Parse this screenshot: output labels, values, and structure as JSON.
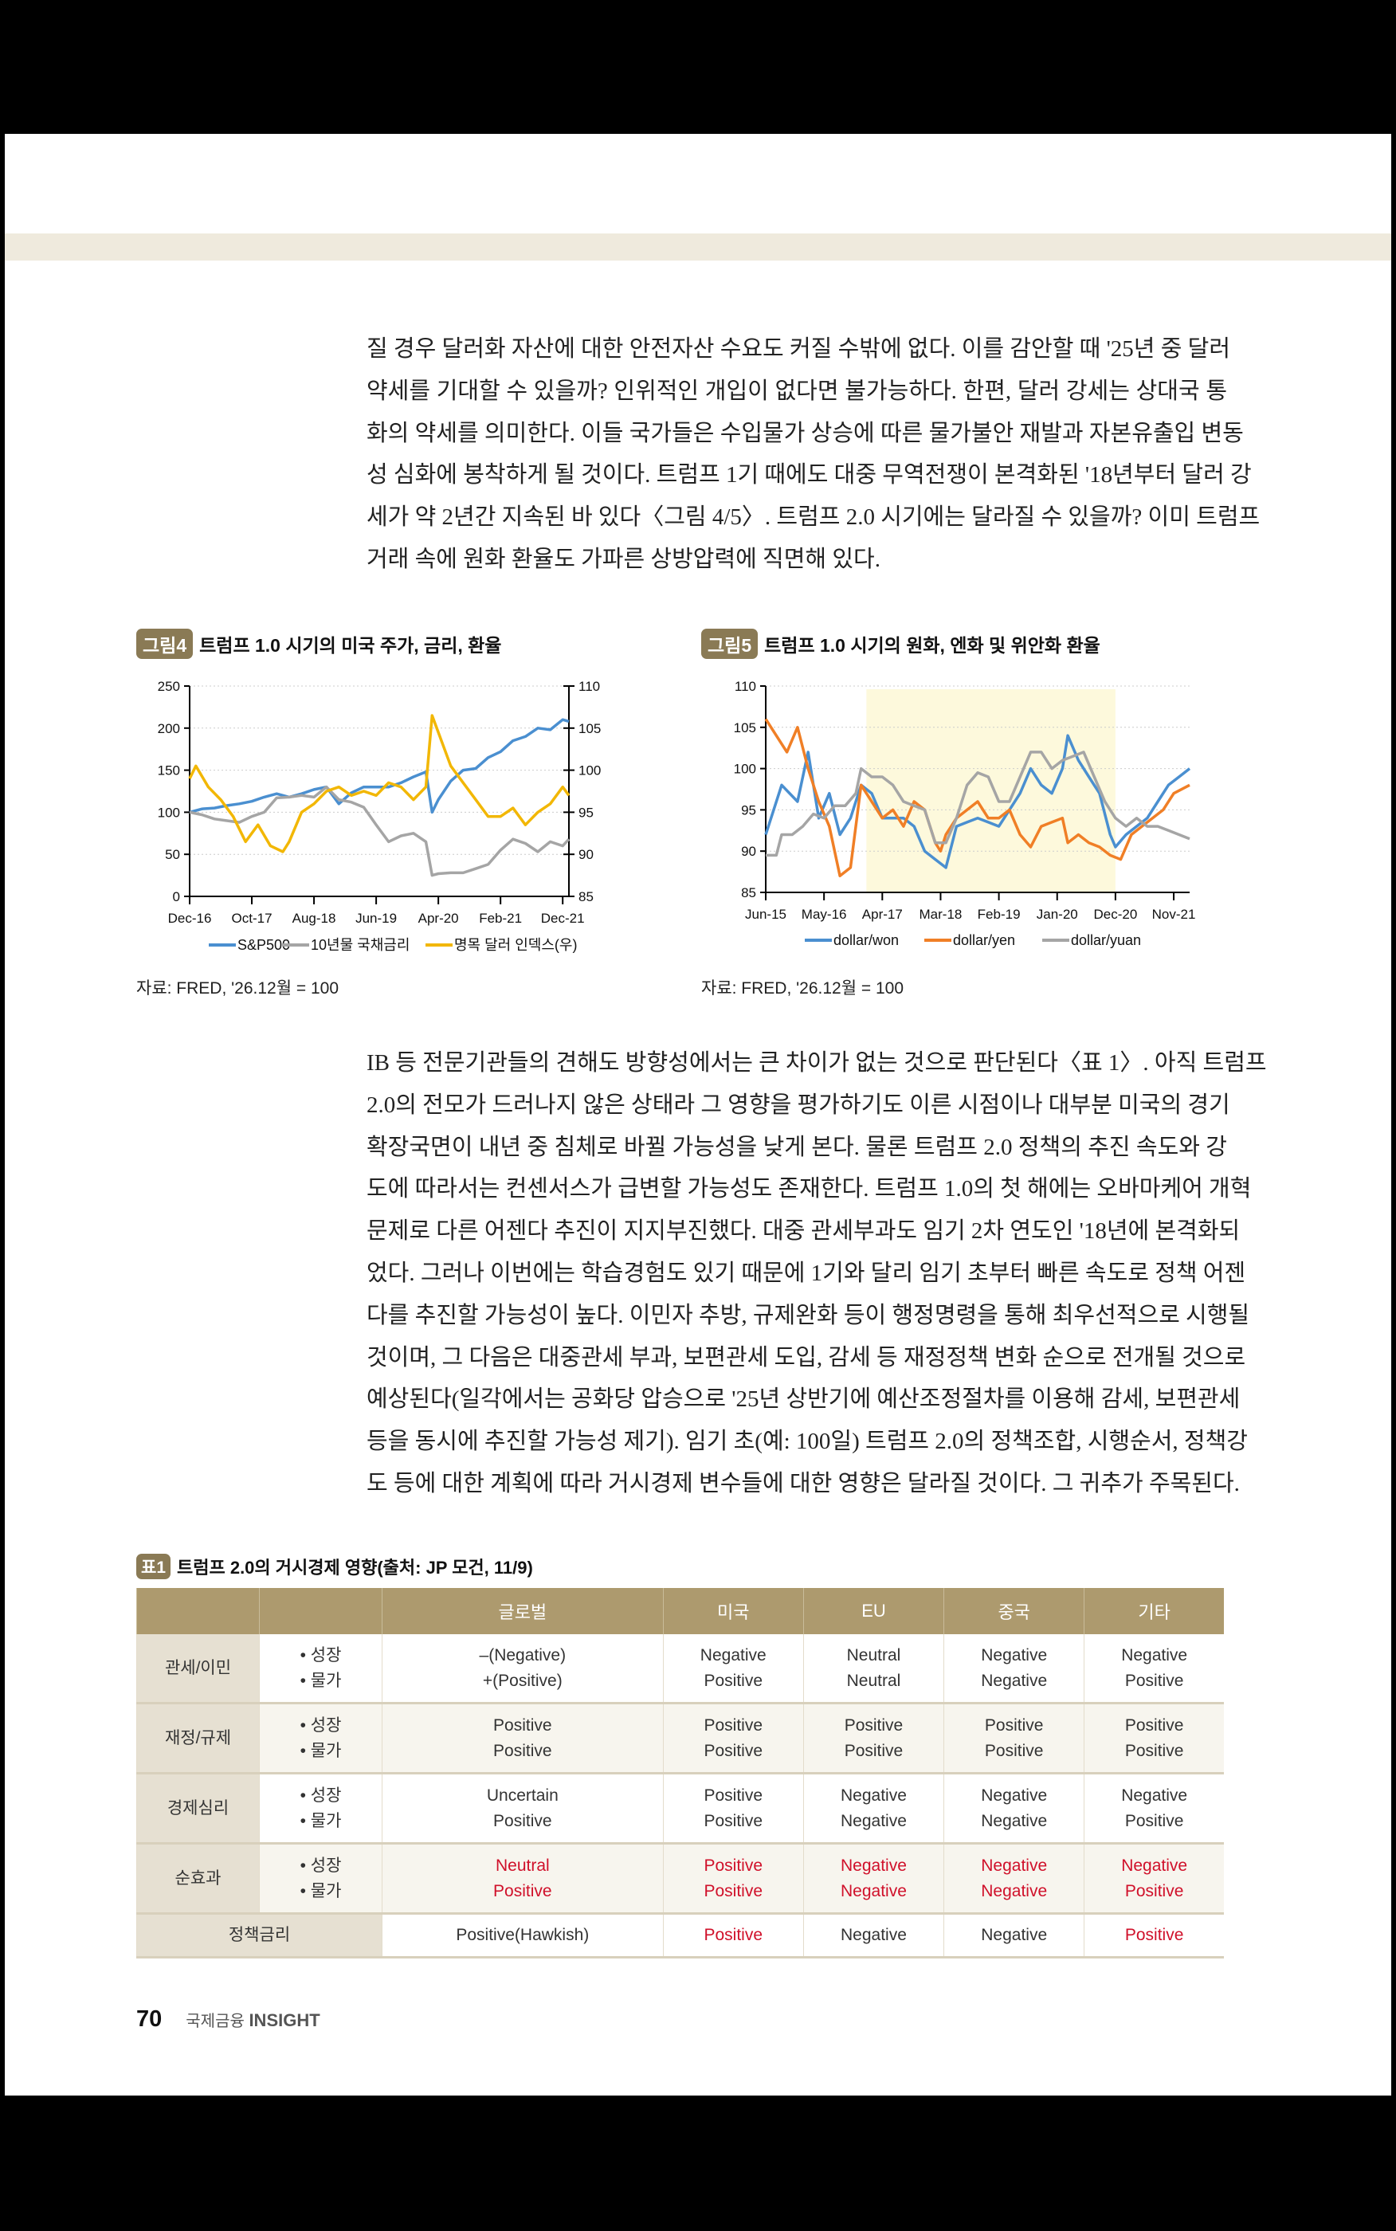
{
  "paragraph1": [
    "질 경우 달러화 자산에 대한 안전자산 수요도 커질 수밖에 없다. 이를 감안할 때 '25년 중 달러",
    "약세를 기대할 수 있을까? 인위적인 개입이 없다면 불가능하다. 한편, 달러 강세는 상대국 통",
    "화의 약세를 의미한다. 이들 국가들은 수입물가 상승에 따른 물가불안 재발과 자본유출입 변동",
    "성 심화에 봉착하게 될 것이다. 트럼프 1기 때에도 대중 무역전쟁이 본격화된 '18년부터 달러 강",
    "세가 약 2년간 지속된 바 있다〈그림 4/5〉. 트럼프 2.0 시기에는 달라질 수 있을까? 이미 트럼프",
    "거래 속에 원화 환율도 가파른 상방압력에 직면해 있다."
  ],
  "paragraph2": [
    "IB 등 전문기관들의 견해도 방향성에서는 큰 차이가 없는 것으로 판단된다〈표 1〉. 아직 트럼프",
    "2.0의 전모가 드러나지 않은 상태라 그 영향을 평가하기도 이른 시점이나 대부분 미국의 경기",
    "확장국면이 내년 중 침체로 바뀔 가능성을 낮게 본다. 물론 트럼프 2.0 정책의 추진 속도와 강",
    "도에 따라서는 컨센서스가 급변할 가능성도 존재한다. 트럼프 1.0의 첫 해에는 오바마케어 개혁",
    "문제로 다른 어젠다 추진이 지지부진했다. 대중 관세부과도 임기 2차 연도인 '18년에 본격화되",
    "었다. 그러나 이번에는 학습경험도 있기 때문에 1기와 달리 임기 초부터 빠른 속도로 정책 어젠",
    "다를 추진할 가능성이 높다. 이민자 추방, 규제완화 등이 행정명령을 통해 최우선적으로 시행될",
    "것이며, 그 다음은 대중관세 부과, 보편관세 도입, 감세 등 재정정책 변화 순으로 전개될 것으로",
    "예상된다(일각에서는 공화당 압승으로 '25년 상반기에 예산조정절차를 이용해 감세, 보편관세",
    "등을 동시에 추진할 가능성 제기). 임기 초(예: 100일) 트럼프 2.0의 정책조합, 시행순서, 정책강",
    "도 등에 대한 계획에 따라 거시경제 변수들에 대한 영향은 달라질 것이다. 그 귀추가 주목된다."
  ],
  "figure4": {
    "badge": "그림4",
    "title": "트럼프 1.0 시기의 미국 주가, 금리, 환율",
    "source": "자료: FRED, '26.12월 = 100"
  },
  "figure5": {
    "badge": "그림5",
    "title": "트럼프 1.0 시기의 원화, 엔화 및 위안화 환율",
    "source": "자료: FRED, '26.12월 = 100"
  },
  "chart_data": [
    {
      "type": "line",
      "title": "트럼프 1.0 시기의 미국 주가, 금리, 환율",
      "x_range": [
        "2016-12",
        "2022-01"
      ],
      "x_ticks": [
        [
          "2016-12",
          "Dec-16"
        ],
        [
          "2017-10",
          "Oct-17"
        ],
        [
          "2018-08",
          "Aug-18"
        ],
        [
          "2019-06",
          "Jun-19"
        ],
        [
          "2020-04",
          "Apr-20"
        ],
        [
          "2021-02",
          "Feb-21"
        ],
        [
          "2021-12",
          "Dec-21"
        ]
      ],
      "y_left": {
        "range": [
          0,
          250
        ],
        "ticks": [
          0,
          50,
          100,
          150,
          200,
          250
        ]
      },
      "y_right": {
        "range": [
          85,
          110
        ],
        "ticks": [
          85,
          90,
          95,
          100,
          105,
          110
        ]
      },
      "grid": "horizontal dotted",
      "legend": "bottom",
      "series": [
        {
          "name": "S&P500",
          "axis": "left",
          "color": "#4a8fd0",
          "x": [
            "2016-12",
            "2017-02",
            "2017-04",
            "2017-06",
            "2017-08",
            "2017-10",
            "2017-12",
            "2018-02",
            "2018-04",
            "2018-06",
            "2018-08",
            "2018-10",
            "2018-12",
            "2019-02",
            "2019-04",
            "2019-06",
            "2019-08",
            "2019-10",
            "2019-12",
            "2020-02",
            "2020-03",
            "2020-04",
            "2020-06",
            "2020-08",
            "2020-10",
            "2020-12",
            "2021-02",
            "2021-04",
            "2021-06",
            "2021-08",
            "2021-10",
            "2021-12",
            "2022-01"
          ],
          "y": [
            100,
            104,
            105,
            108,
            110,
            113,
            118,
            122,
            118,
            122,
            127,
            130,
            110,
            123,
            130,
            130,
            130,
            135,
            142,
            148,
            100,
            115,
            137,
            150,
            152,
            165,
            172,
            185,
            190,
            200,
            198,
            210,
            208
          ]
        },
        {
          "name": "10년물 국채금리",
          "axis": "left",
          "color": "#a5a5a5",
          "x": [
            "2016-12",
            "2017-02",
            "2017-04",
            "2017-06",
            "2017-08",
            "2017-10",
            "2017-12",
            "2018-02",
            "2018-04",
            "2018-06",
            "2018-08",
            "2018-10",
            "2018-12",
            "2019-02",
            "2019-04",
            "2019-06",
            "2019-08",
            "2019-10",
            "2019-12",
            "2020-02",
            "2020-03",
            "2020-04",
            "2020-06",
            "2020-08",
            "2020-10",
            "2020-12",
            "2021-02",
            "2021-04",
            "2021-06",
            "2021-08",
            "2021-10",
            "2021-12",
            "2022-01"
          ],
          "y": [
            100,
            97,
            92,
            90,
            88,
            95,
            100,
            117,
            118,
            120,
            118,
            130,
            115,
            112,
            106,
            85,
            65,
            72,
            75,
            65,
            25,
            27,
            28,
            28,
            33,
            38,
            55,
            68,
            63,
            53,
            65,
            60,
            68
          ]
        },
        {
          "name": "명목 달러 인덱스(우)",
          "axis": "right",
          "color": "#f2b705",
          "x": [
            "2016-12",
            "2017-01",
            "2017-03",
            "2017-05",
            "2017-07",
            "2017-09",
            "2017-11",
            "2018-01",
            "2018-03",
            "2018-04",
            "2018-06",
            "2018-08",
            "2018-10",
            "2018-12",
            "2019-02",
            "2019-04",
            "2019-06",
            "2019-08",
            "2019-10",
            "2019-12",
            "2020-02",
            "2020-03",
            "2020-04",
            "2020-06",
            "2020-08",
            "2020-10",
            "2020-12",
            "2021-02",
            "2021-04",
            "2021-06",
            "2021-08",
            "2021-10",
            "2021-12",
            "2022-01"
          ],
          "y": [
            99,
            100.5,
            98,
            96.5,
            94.5,
            91.5,
            93.5,
            91,
            90.3,
            91.5,
            95,
            96,
            97.5,
            98,
            97,
            97.5,
            97,
            98.5,
            98,
            96.5,
            98,
            106.5,
            104.5,
            100.5,
            98.5,
            96.5,
            94.5,
            94.5,
            95.5,
            93.5,
            95,
            96,
            98,
            97
          ]
        }
      ]
    },
    {
      "type": "line",
      "title": "트럼프 1.0 시기의 원화, 엔화 및 위안화 환율",
      "x_range": [
        "2015-06",
        "2022-02"
      ],
      "x_ticks": [
        [
          "2015-06",
          "Jun-15"
        ],
        [
          "2016-05",
          "May-16"
        ],
        [
          "2017-04",
          "Apr-17"
        ],
        [
          "2018-03",
          "Mar-18"
        ],
        [
          "2019-02",
          "Feb-19"
        ],
        [
          "2020-01",
          "Jan-20"
        ],
        [
          "2020-12",
          "Dec-20"
        ],
        [
          "2021-11",
          "Nov-21"
        ]
      ],
      "y": {
        "range": [
          85,
          110
        ],
        "ticks": [
          85,
          90,
          95,
          100,
          105,
          110
        ]
      },
      "shaded_period": [
        "2017-01",
        "2020-12"
      ],
      "shade_color": "#fdf9dc",
      "grid": "horizontal dotted",
      "legend": "bottom",
      "series": [
        {
          "name": "dollar/won",
          "color": "#4a8fd0",
          "x": [
            "2015-06",
            "2015-09",
            "2015-12",
            "2016-02",
            "2016-04",
            "2016-06",
            "2016-08",
            "2016-10",
            "2016-12",
            "2017-02",
            "2017-04",
            "2017-06",
            "2017-08",
            "2017-10",
            "2017-12",
            "2018-02",
            "2018-04",
            "2018-06",
            "2018-08",
            "2018-10",
            "2018-12",
            "2019-02",
            "2019-04",
            "2019-06",
            "2019-08",
            "2019-10",
            "2019-12",
            "2020-02",
            "2020-03",
            "2020-05",
            "2020-07",
            "2020-09",
            "2020-11",
            "2020-12",
            "2021-02",
            "2021-04",
            "2021-06",
            "2021-08",
            "2021-10",
            "2021-12",
            "2022-02"
          ],
          "y": [
            92,
            98,
            96,
            102,
            94,
            97,
            92,
            94,
            98,
            97,
            94,
            94,
            94,
            93,
            90,
            89,
            88,
            93,
            93.5,
            94,
            93.5,
            93,
            95,
            97,
            100,
            98,
            97,
            100,
            104,
            101,
            99,
            97,
            92,
            90.5,
            92,
            93,
            94,
            96,
            98,
            99,
            100
          ]
        },
        {
          "name": "dollar/yen",
          "color": "#f07f26",
          "x": [
            "2015-06",
            "2015-08",
            "2015-10",
            "2015-12",
            "2016-02",
            "2016-04",
            "2016-06",
            "2016-08",
            "2016-10",
            "2016-12",
            "2017-02",
            "2017-04",
            "2017-06",
            "2017-08",
            "2017-10",
            "2017-12",
            "2018-02",
            "2018-03",
            "2018-04",
            "2018-06",
            "2018-08",
            "2018-10",
            "2018-12",
            "2019-02",
            "2019-04",
            "2019-06",
            "2019-08",
            "2019-10",
            "2019-12",
            "2020-02",
            "2020-03",
            "2020-05",
            "2020-07",
            "2020-09",
            "2020-11",
            "2021-01",
            "2021-03",
            "2021-05",
            "2021-07",
            "2021-09",
            "2021-11",
            "2022-02"
          ],
          "y": [
            106,
            104,
            102,
            105,
            100,
            96,
            93,
            87,
            88,
            98,
            96,
            94,
            95,
            93,
            96,
            95,
            91,
            90,
            92,
            94,
            95,
            96,
            94,
            94,
            95,
            92,
            90.5,
            93,
            93.5,
            94,
            91,
            92,
            91,
            90.5,
            89.5,
            89,
            92,
            93,
            94,
            95,
            97,
            98
          ]
        },
        {
          "name": "dollar/yuan",
          "color": "#a5a5a5",
          "x": [
            "2015-06",
            "2015-08",
            "2015-09",
            "2015-11",
            "2016-01",
            "2016-03",
            "2016-05",
            "2016-07",
            "2016-09",
            "2016-11",
            "2016-12",
            "2017-02",
            "2017-04",
            "2017-06",
            "2017-08",
            "2017-10",
            "2017-12",
            "2018-02",
            "2018-04",
            "2018-06",
            "2018-08",
            "2018-10",
            "2018-12",
            "2019-02",
            "2019-04",
            "2019-06",
            "2019-08",
            "2019-10",
            "2019-12",
            "2020-02",
            "2020-04",
            "2020-06",
            "2020-08",
            "2020-10",
            "2020-12",
            "2021-02",
            "2021-04",
            "2021-06",
            "2021-08",
            "2021-10",
            "2021-12",
            "2022-02"
          ],
          "y": [
            89.5,
            89.5,
            92,
            92,
            93,
            94.5,
            94,
            95.5,
            95.5,
            97,
            100,
            99,
            99,
            98,
            96,
            95.5,
            95,
            91,
            91,
            94,
            98,
            99.5,
            99,
            96,
            96,
            99,
            102,
            102,
            100,
            101,
            101.5,
            102,
            99,
            96,
            94,
            93,
            94,
            93,
            93,
            92.5,
            92,
            91.5
          ]
        }
      ]
    }
  ],
  "table1": {
    "badge": "표1",
    "title": "트럼프 2.0의 거시경제 영향(출처: JP 모건, 11/9)",
    "header": [
      "",
      "",
      "글로벌",
      "미국",
      "EU",
      "중국",
      "기타"
    ],
    "red_color": "#d0102a",
    "rows": [
      {
        "label": "관세/이민",
        "sub": [
          "• 성장",
          "• 물가"
        ],
        "cells": [
          [
            "–(Negative)",
            "+(Positive)"
          ],
          [
            "Negative",
            "Positive"
          ],
          [
            "Neutral",
            "Neutral"
          ],
          [
            "Negative",
            "Negative"
          ],
          [
            "Negative",
            "Positive"
          ]
        ],
        "red": false
      },
      {
        "label": "재정/규제",
        "sub": [
          "• 성장",
          "• 물가"
        ],
        "cells": [
          [
            "Positive",
            "Positive"
          ],
          [
            "Positive",
            "Positive"
          ],
          [
            "Positive",
            "Positive"
          ],
          [
            "Positive",
            "Positive"
          ],
          [
            "Positive",
            "Positive"
          ]
        ],
        "red": false
      },
      {
        "label": "경제심리",
        "sub": [
          "• 성장",
          "• 물가"
        ],
        "cells": [
          [
            "Uncertain",
            "Positive"
          ],
          [
            "Positive",
            "Positive"
          ],
          [
            "Negative",
            "Negative"
          ],
          [
            "Negative",
            "Negative"
          ],
          [
            "Negative",
            "Positive"
          ]
        ],
        "red": false
      },
      {
        "label": "순효과",
        "sub": [
          "• 성장",
          "• 물가"
        ],
        "cells": [
          [
            "Neutral",
            "Positive"
          ],
          [
            "Positive",
            "Positive"
          ],
          [
            "Negative",
            "Negative"
          ],
          [
            "Negative",
            "Negative"
          ],
          [
            "Negative",
            "Positive"
          ]
        ],
        "red": true
      }
    ],
    "policy_rate": {
      "label": "정책금리",
      "cells": [
        "Positive(Hawkish)",
        "Positive",
        "Negative",
        "Negative",
        "Positive"
      ],
      "red": [
        false,
        true,
        false,
        false,
        true
      ]
    }
  },
  "footer": {
    "page_number": "70",
    "publication_kr": "국제금융",
    "publication_en": "INSIGHT"
  }
}
